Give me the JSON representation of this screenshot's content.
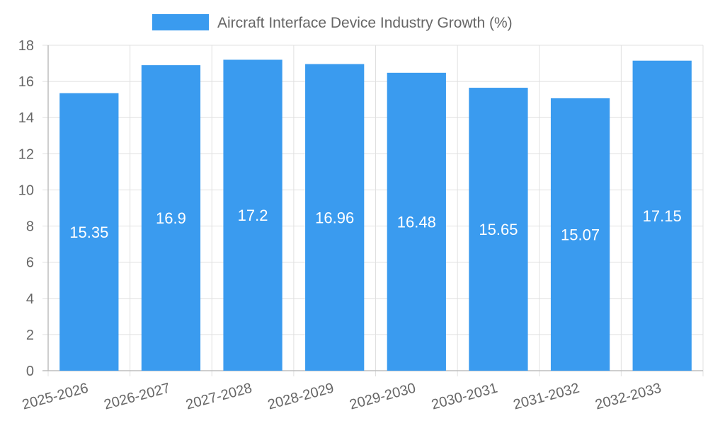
{
  "chart_data": {
    "type": "bar",
    "title": "",
    "xlabel": "",
    "ylabel": "",
    "categories": [
      "2025-2026",
      "2026-2027",
      "2027-2028",
      "2028-2029",
      "2029-2030",
      "2030-2031",
      "2031-2032",
      "2032-2033"
    ],
    "series": [
      {
        "name": "Aircraft Interface Device Industry Growth (%)",
        "values": [
          15.35,
          16.9,
          17.2,
          16.96,
          16.48,
          15.65,
          15.07,
          17.15
        ],
        "labels": [
          "15.35",
          "16.9",
          "17.2",
          "16.96",
          "16.48",
          "15.65",
          "15.07",
          "17.15"
        ]
      }
    ],
    "ylim": [
      0,
      18
    ],
    "yticks": [
      "0",
      "2",
      "4",
      "6",
      "8",
      "10",
      "12",
      "14",
      "16",
      "18"
    ],
    "grid": true,
    "legend_position": "top-center",
    "colors": {
      "bar": "#3a9bef",
      "grid": "#e0e0e0",
      "axis": "#bdbdbd",
      "text": "#666666",
      "data_label": "#ffffff"
    }
  }
}
